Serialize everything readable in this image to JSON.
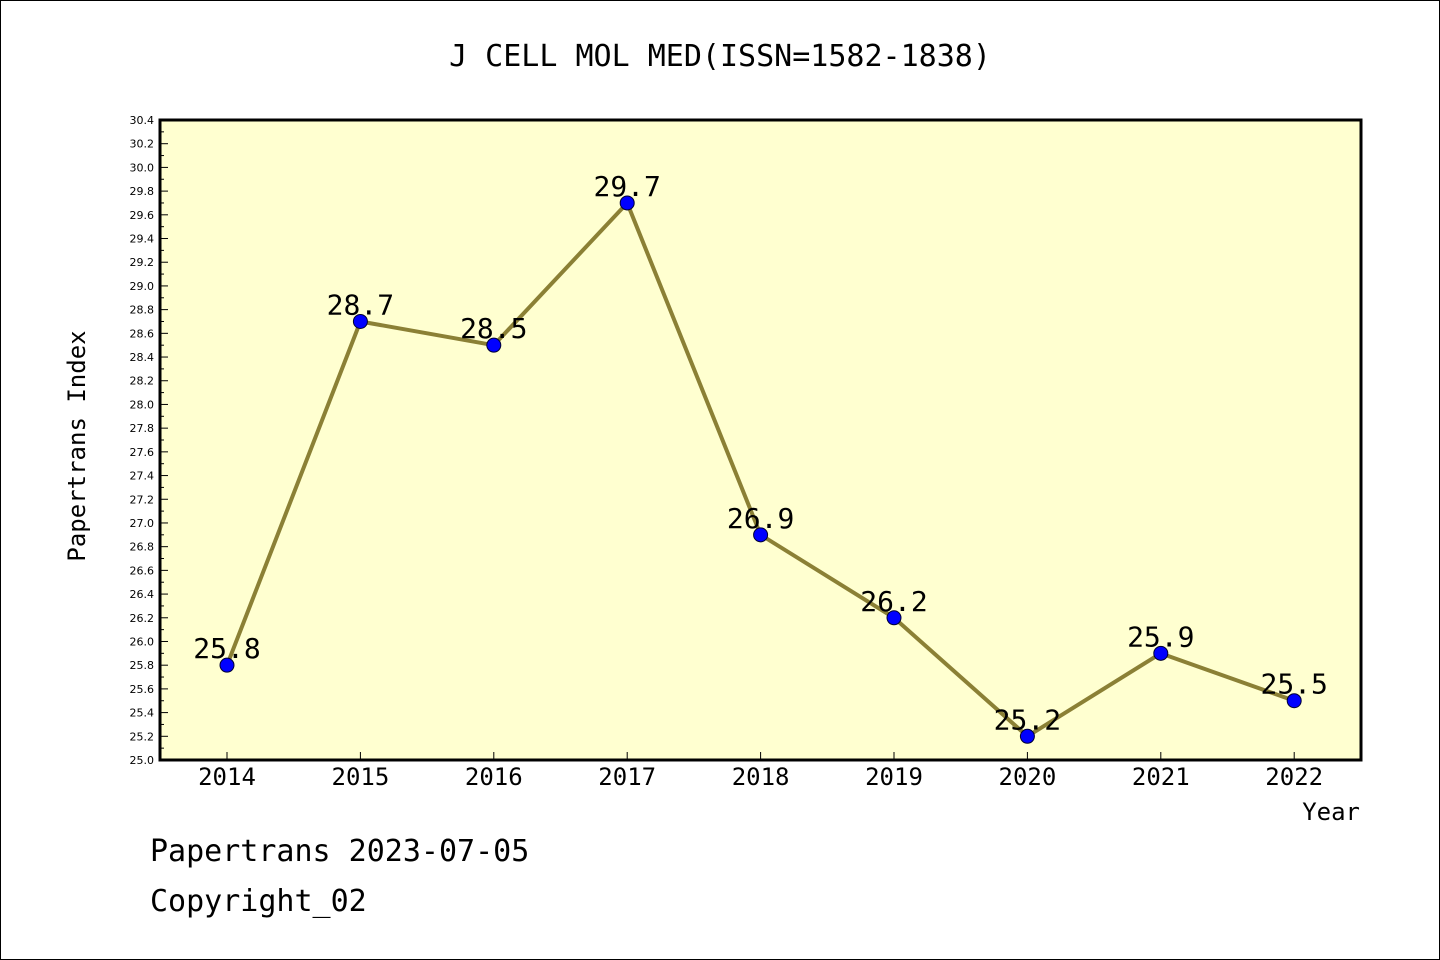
{
  "footer": {
    "line1": "Papertrans 2023-07-05",
    "line2": "Copyright_02"
  },
  "colors": {
    "plot_background": "#ffffd0",
    "line": "#8b8035",
    "marker": "#0000ff",
    "text": "#000000"
  },
  "chart_data": {
    "type": "line",
    "title": "J CELL MOL MED(ISSN=1582-1838)",
    "xlabel": "Year",
    "ylabel": "Papertrans Index",
    "categories": [
      "2014",
      "2015",
      "2016",
      "2017",
      "2018",
      "2019",
      "2020",
      "2021",
      "2022"
    ],
    "values": [
      25.8,
      28.7,
      28.5,
      29.7,
      26.9,
      26.2,
      25.2,
      25.9,
      25.5
    ],
    "data_labels": [
      "25.8",
      "28.7",
      "28.5",
      "29.7",
      "26.9",
      "26.2",
      "25.2",
      "25.9",
      "25.5"
    ],
    "ylim": [
      25.0,
      30.4
    ],
    "yticks": [
      "25.0",
      "25.2",
      "25.4",
      "25.6",
      "25.8",
      "26.0",
      "26.2",
      "26.4",
      "26.6",
      "26.8",
      "27.0",
      "27.2",
      "27.4",
      "27.6",
      "27.8",
      "28.0",
      "28.2",
      "28.4",
      "28.6",
      "28.8",
      "29.0",
      "29.2",
      "29.4",
      "29.6",
      "29.8",
      "30.0",
      "30.2",
      "30.4"
    ],
    "marker": "circle",
    "grid": false,
    "legend": "none"
  }
}
